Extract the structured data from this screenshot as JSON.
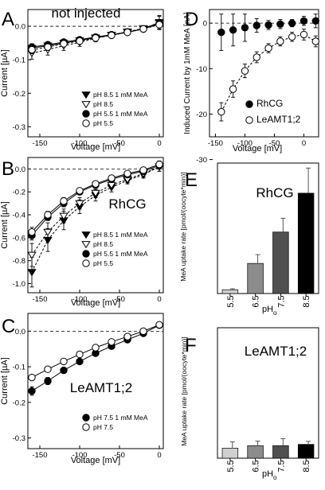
{
  "figure": {
    "panels": [
      {
        "letter": "A",
        "title": "not injected",
        "name_label": "",
        "xlabel": "Voltage [mV]",
        "ylabel": "Current [µA]",
        "x_ticks": [
          -150,
          -100,
          -50,
          0
        ],
        "y_ticks": [
          "0.0",
          "-0.1",
          "-0.2",
          "-0.3"
        ],
        "legend": [
          "pH 8.5 1 mM MeA",
          "pH 8.5",
          "pH 5.5 1 mM MeA",
          "pH 5.5"
        ]
      },
      {
        "letter": "B",
        "title": "",
        "name_label": "RhCG",
        "xlabel": "Voltage [mV]",
        "ylabel": "Current [µA]",
        "x_ticks": [
          -150,
          -100,
          -50,
          0
        ],
        "y_ticks": [
          "0.0",
          "-0.2",
          "-0.4",
          "-0.6",
          "-0.8",
          "-1.0"
        ],
        "legend": [
          "pH 8.5 1 mM MeA",
          "pH 8.5",
          "pH 5.5 1 mM MeA",
          "pH 5.5"
        ]
      },
      {
        "letter": "C",
        "title": "",
        "name_label": "LeAMT1;2",
        "xlabel": "Voltage [mV]",
        "ylabel": "Current [µA]",
        "x_ticks": [
          -150,
          -100,
          -50,
          0
        ],
        "y_ticks": [
          "0.0",
          "-0.1",
          "-0.2",
          "-0.3"
        ],
        "legend": [
          "pH 7.5 1 mM MeA",
          "pH 7.5"
        ]
      },
      {
        "letter": "D",
        "title": "",
        "name_label": "",
        "xlabel": "Voltage [mV]",
        "ylabel": "Induced Current by 1mM MeA [nA]",
        "x_ticks": [
          -150,
          -100,
          -50,
          0
        ],
        "y_ticks": [
          "0",
          "-10",
          "-20",
          "-30"
        ],
        "legend": [
          "RhCG",
          "LeAMT1;2"
        ]
      },
      {
        "letter": "E",
        "title": "RhCG",
        "name_label": "",
        "xlabel": "pH",
        "xlabel_sub": "o",
        "ylabel": "MeA uptake rate [pmol/(oocyte*min)]",
        "x_ticks": [
          "5.5",
          "6.5",
          "7.5",
          "8.5"
        ],
        "y_ticks": [],
        "legend": []
      },
      {
        "letter": "F",
        "title": "LeAMT1;2",
        "name_label": "",
        "xlabel": "pH",
        "xlabel_sub": "o",
        "ylabel": "MeA uptake rate [pmol/(oocyte*min)]",
        "x_ticks": [
          "5.5",
          "6.5",
          "7.5",
          "8.5"
        ],
        "y_ticks": [],
        "legend": []
      }
    ]
  },
  "chart_data": [
    {
      "panel": "A",
      "type": "line",
      "xlim": [
        -165,
        5
      ],
      "ylim": [
        -0.33,
        0.05
      ],
      "zero_line": true,
      "series": [
        {
          "name": "pH 8.5 1 mM MeA",
          "marker": "triangle-down-filled",
          "line": "solid",
          "x": [
            -160,
            -140,
            -120,
            -100,
            -80,
            -60,
            -40,
            -20,
            0
          ],
          "y": [
            -0.065,
            -0.058,
            -0.05,
            -0.042,
            -0.034,
            -0.026,
            -0.018,
            -0.008,
            0.012
          ],
          "err": [
            0.012,
            0.01,
            0.01,
            0.008,
            0.008,
            0.006,
            0.006,
            0.006,
            0.02
          ]
        },
        {
          "name": "pH 8.5",
          "marker": "triangle-down-open",
          "line": "dashed",
          "x": [
            -160,
            -140,
            -120,
            -100,
            -80,
            -60,
            -40,
            -20,
            0
          ],
          "y": [
            -0.08,
            -0.07,
            -0.058,
            -0.048,
            -0.036,
            -0.026,
            -0.016,
            -0.006,
            0.01
          ],
          "err": [
            0.018,
            0.016,
            0.014,
            0.012,
            0.01,
            0.008,
            0.008,
            0.006,
            0.02
          ]
        },
        {
          "name": "pH 5.5 1 mM MeA",
          "marker": "circle-filled",
          "line": "solid",
          "x": [
            -160,
            -140,
            -120,
            -100,
            -80,
            -60,
            -40,
            -20,
            0
          ],
          "y": [
            -0.062,
            -0.055,
            -0.047,
            -0.04,
            -0.032,
            -0.025,
            -0.017,
            -0.008,
            0.008
          ],
          "err": [
            0.01,
            0.009,
            0.008,
            0.007,
            0.007,
            0.006,
            0.005,
            0.005,
            0.012
          ]
        },
        {
          "name": "pH 5.5",
          "marker": "circle-open",
          "line": "dashed",
          "x": [
            -160,
            -140,
            -120,
            -100,
            -80,
            -60,
            -40,
            -20,
            0
          ],
          "y": [
            -0.07,
            -0.062,
            -0.052,
            -0.044,
            -0.035,
            -0.027,
            -0.018,
            -0.008,
            0.005
          ],
          "err": [
            0.012,
            0.01,
            0.009,
            0.008,
            0.007,
            0.006,
            0.005,
            0.005,
            0.01
          ]
        }
      ]
    },
    {
      "panel": "B",
      "type": "line",
      "xlim": [
        -165,
        5
      ],
      "ylim": [
        -1.08,
        0.1
      ],
      "zero_line": true,
      "series": [
        {
          "name": "pH 8.5 1 mM MeA",
          "marker": "triangle-down-filled",
          "line": "dashed",
          "x": [
            -160,
            -140,
            -120,
            -100,
            -80,
            -60,
            -40,
            -20,
            0
          ],
          "y": [
            -0.9,
            -0.62,
            -0.45,
            -0.33,
            -0.23,
            -0.16,
            -0.1,
            -0.05,
            0.02
          ],
          "err": [
            0.13,
            0.1,
            0.08,
            0.06,
            0.05,
            0.04,
            0.03,
            0.03,
            0.04
          ]
        },
        {
          "name": "pH 8.5",
          "marker": "triangle-down-open",
          "line": "dashed",
          "x": [
            -160,
            -140,
            -120,
            -100,
            -80,
            -60,
            -40,
            -20,
            0
          ],
          "y": [
            -0.75,
            -0.55,
            -0.41,
            -0.3,
            -0.21,
            -0.14,
            -0.09,
            -0.04,
            0.02
          ],
          "err": [
            0.1,
            0.08,
            0.06,
            0.05,
            0.04,
            0.03,
            0.03,
            0.03,
            0.04
          ]
        },
        {
          "name": "pH 5.5 1 mM MeA",
          "marker": "circle-filled",
          "line": "solid",
          "x": [
            -160,
            -140,
            -120,
            -100,
            -80,
            -60,
            -40,
            -20,
            0
          ],
          "y": [
            -0.58,
            -0.42,
            -0.3,
            -0.2,
            -0.14,
            -0.09,
            -0.05,
            -0.02,
            0.03
          ],
          "err": [
            0.04,
            0.03,
            0.03,
            0.02,
            0.02,
            0.02,
            0.02,
            0.02,
            0.03
          ]
        },
        {
          "name": "pH 5.5",
          "marker": "circle-open",
          "line": "solid",
          "x": [
            -160,
            -140,
            -120,
            -100,
            -80,
            -60,
            -40,
            -20,
            0
          ],
          "y": [
            -0.55,
            -0.4,
            -0.28,
            -0.19,
            -0.13,
            -0.08,
            -0.04,
            -0.01,
            0.04
          ],
          "err": [
            0.04,
            0.03,
            0.03,
            0.02,
            0.02,
            0.02,
            0.02,
            0.02,
            0.03
          ]
        }
      ]
    },
    {
      "panel": "C",
      "type": "line",
      "xlim": [
        -165,
        5
      ],
      "ylim": [
        -0.33,
        0.05
      ],
      "zero_line": true,
      "series": [
        {
          "name": "pH 7.5 1 mM MeA",
          "marker": "circle-filled",
          "line": "solid",
          "x": [
            -160,
            -140,
            -120,
            -100,
            -80,
            -60,
            -40,
            -20,
            0
          ],
          "y": [
            -0.168,
            -0.14,
            -0.11,
            -0.085,
            -0.062,
            -0.042,
            -0.024,
            -0.006,
            0.017
          ],
          "err": [
            0.012,
            0.01,
            0.008,
            0.006,
            0.005,
            0.005,
            0.004,
            0.004,
            0.004
          ]
        },
        {
          "name": "pH 7.5",
          "marker": "circle-open",
          "line": "solid",
          "x": [
            -160,
            -140,
            -120,
            -100,
            -80,
            -60,
            -40,
            -20,
            0
          ],
          "y": [
            -0.13,
            -0.107,
            -0.085,
            -0.065,
            -0.046,
            -0.03,
            -0.015,
            0.0,
            0.018
          ],
          "err": [
            0.008,
            0.006,
            0.005,
            0.005,
            0.004,
            0.004,
            0.004,
            0.004,
            0.004
          ]
        }
      ]
    },
    {
      "panel": "D",
      "type": "scatter",
      "xlim": [
        -160,
        25
      ],
      "ylim": [
        -25,
        3
      ],
      "zero_line": true,
      "series": [
        {
          "name": "RhCG",
          "marker": "circle-filled",
          "line": "none",
          "x": [
            -140,
            -120,
            -100,
            -80,
            -60,
            -40,
            -20,
            0,
            20
          ],
          "y": [
            -2,
            -1.5,
            -1,
            -0.5,
            -0.4,
            -0.2,
            0,
            0.5,
            0.5
          ],
          "err": [
            4,
            3.5,
            3,
            1.5,
            1,
            1,
            0.8,
            1,
            1.5
          ]
        },
        {
          "name": "LeAMT1;2",
          "marker": "circle-open",
          "line": "dashed",
          "x": [
            -140,
            -120,
            -100,
            -80,
            -60,
            -40,
            -20,
            0,
            20
          ],
          "y": [
            -19.5,
            -14.5,
            -10.5,
            -7.5,
            -5.5,
            -4,
            -3,
            -2.5,
            -4
          ],
          "err": [
            2,
            1.8,
            1.5,
            1.2,
            1,
            1,
            1,
            1.2,
            1.2
          ]
        }
      ]
    },
    {
      "panel": "E",
      "type": "bar",
      "categories": [
        "5.5",
        "6.5",
        "7.5",
        "8.5"
      ],
      "values": [
        1.5,
        12,
        24.5,
        40
      ],
      "err": [
        0.4,
        3.5,
        5.5,
        10
      ],
      "ylim": [
        0,
        52
      ],
      "colors": [
        "#d0d0d0",
        "#8c8c8c",
        "#505050",
        "#000000"
      ]
    },
    {
      "panel": "F",
      "type": "bar",
      "categories": [
        "5.5",
        "6.5",
        "7.5",
        "8.5"
      ],
      "values": [
        4,
        5,
        5,
        5.5
      ],
      "err": [
        2.5,
        1.8,
        2.8,
        1.2
      ],
      "ylim": [
        0,
        52
      ],
      "colors": [
        "#d0d0d0",
        "#8c8c8c",
        "#505050",
        "#000000"
      ]
    }
  ]
}
